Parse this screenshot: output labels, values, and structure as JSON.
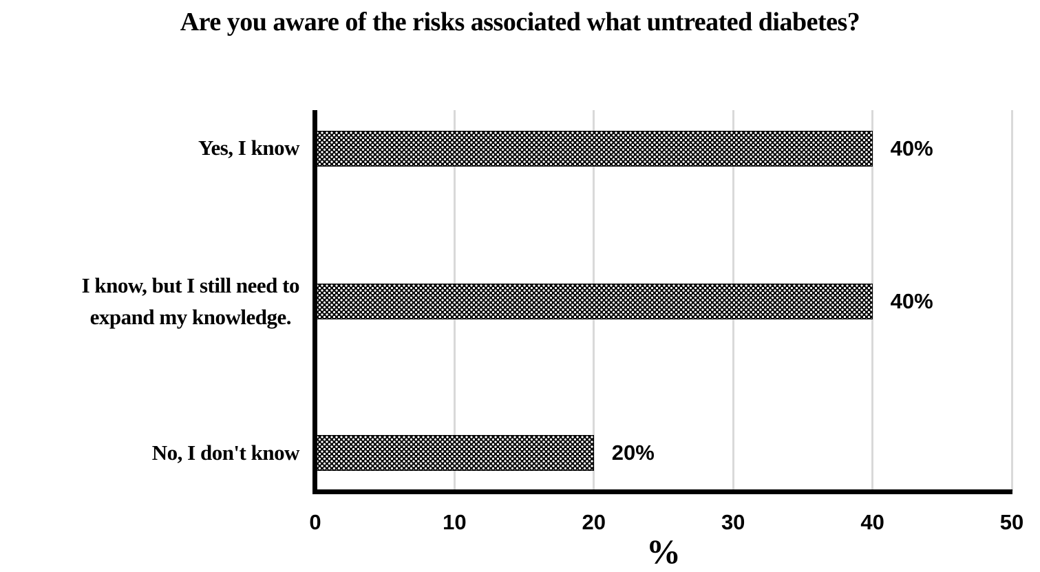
{
  "chart_data": {
    "type": "bar",
    "orientation": "horizontal",
    "title": "Are you aware of the risks associated what untreated diabetes?",
    "categories": [
      "Yes, I know",
      "I know, but I still need to\nexpand my knowledge.",
      "No, I don't know"
    ],
    "values": [
      40,
      40,
      20
    ],
    "value_labels": [
      "40%",
      "40%",
      "20%"
    ],
    "xlabel": "%",
    "ylabel": "",
    "xlim": [
      0,
      50
    ],
    "xticks": [
      0,
      10,
      20,
      30,
      40,
      50
    ],
    "xticklabels": [
      "0",
      "10",
      "20",
      "30",
      "40",
      "50"
    ],
    "grid": "vertical-only",
    "legend_position": "none",
    "colors": {
      "bar_fill": "#000000",
      "bar_pattern_dots": "#ffffff",
      "axis": "#000000",
      "gridline": "#d9d9d9",
      "text": "#000000",
      "background": "#ffffff"
    },
    "bar_fill_style": "black-with-white-dot-weave-pattern"
  }
}
